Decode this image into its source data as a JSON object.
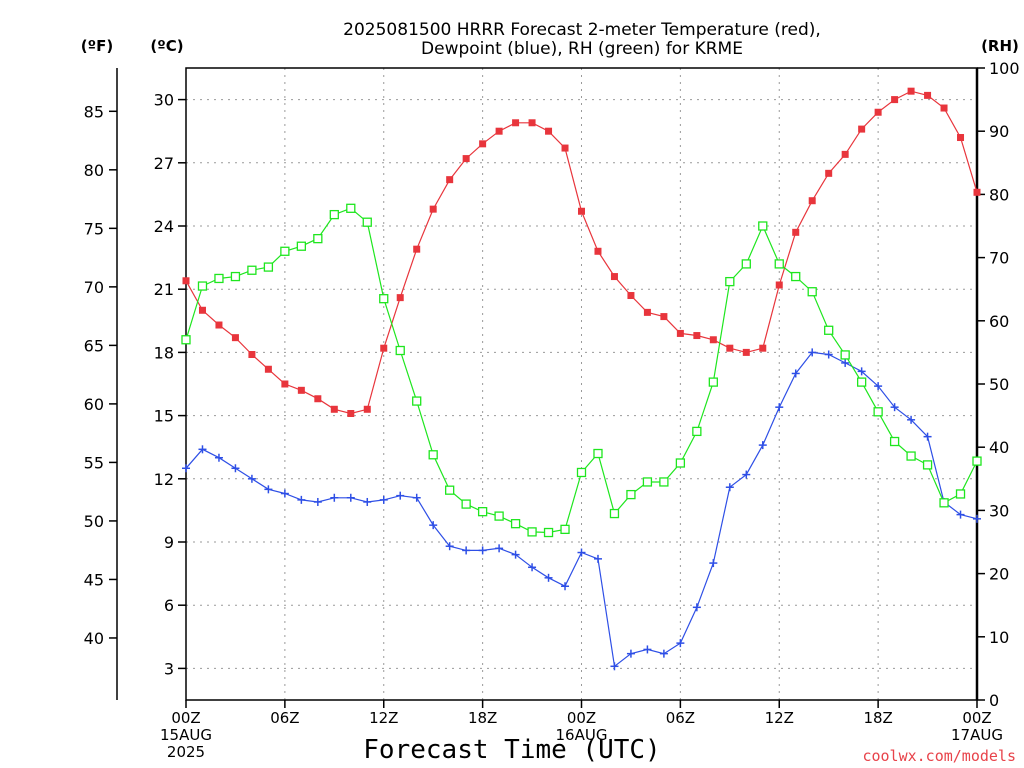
{
  "chart_data": {
    "type": "line",
    "title_line1": "2025081500 HRRR Forecast 2-meter Temperature (red),",
    "title_line2": "Dewpoint (blue), RH (green) for KRME",
    "xlabel": "Forecast Time (UTC)",
    "credit": "coolwx.com/models",
    "unit_f": "(ºF)",
    "unit_c": "(ºC)",
    "unit_rh": "(RH)",
    "celsius_axis": {
      "ylim": [
        1.5,
        31.5
      ],
      "ticks": [
        3,
        6,
        9,
        12,
        15,
        18,
        21,
        24,
        27,
        30
      ]
    },
    "fahrenheit_ticks": [
      40,
      45,
      50,
      55,
      60,
      65,
      70,
      75,
      80,
      85
    ],
    "rh_axis": {
      "ylim": [
        0,
        100
      ],
      "ticks": [
        0,
        10,
        20,
        30,
        40,
        50,
        60,
        70,
        80,
        90,
        100
      ]
    },
    "x_range_hours": [
      0,
      48
    ],
    "x_ticks": [
      {
        "hour": 0,
        "lines": [
          "00Z",
          "15AUG",
          "2025"
        ]
      },
      {
        "hour": 6,
        "lines": [
          "06Z"
        ]
      },
      {
        "hour": 12,
        "lines": [
          "12Z"
        ]
      },
      {
        "hour": 18,
        "lines": [
          "18Z"
        ]
      },
      {
        "hour": 24,
        "lines": [
          "00Z",
          "16AUG"
        ]
      },
      {
        "hour": 30,
        "lines": [
          "06Z"
        ]
      },
      {
        "hour": 36,
        "lines": [
          "12Z"
        ]
      },
      {
        "hour": 42,
        "lines": [
          "18Z"
        ]
      },
      {
        "hour": 48,
        "lines": [
          "00Z",
          "17AUG"
        ]
      }
    ],
    "series": [
      {
        "name": "Temperature",
        "axis": "celsius",
        "color": "#e8353c",
        "marker": "filled-square",
        "values": [
          21.4,
          20.0,
          19.3,
          18.7,
          17.9,
          17.2,
          16.5,
          16.2,
          15.8,
          15.3,
          15.1,
          15.3,
          18.2,
          20.6,
          22.9,
          24.8,
          26.2,
          27.2,
          27.9,
          28.5,
          28.9,
          28.9,
          28.5,
          27.7,
          24.7,
          22.8,
          21.6,
          20.7,
          19.9,
          19.7,
          18.9,
          18.8,
          18.6,
          18.2,
          18.0,
          18.2,
          21.2,
          23.7,
          25.2,
          26.5,
          27.4,
          28.6,
          29.4,
          30.0,
          30.4,
          30.2,
          29.6,
          28.2,
          25.6
        ]
      },
      {
        "name": "Dewpoint",
        "axis": "celsius",
        "color": "#2e4fe6",
        "marker": "plus",
        "values": [
          12.5,
          13.4,
          13.0,
          12.5,
          12.0,
          11.5,
          11.3,
          11.0,
          10.9,
          11.1,
          11.1,
          10.9,
          11.0,
          11.2,
          11.1,
          9.8,
          8.8,
          8.6,
          8.6,
          8.7,
          8.4,
          7.8,
          7.3,
          6.9,
          8.5,
          8.2,
          3.1,
          3.7,
          3.9,
          3.7,
          4.2,
          5.9,
          8.0,
          11.6,
          12.2,
          13.6,
          15.4,
          17.0,
          18.0,
          17.9,
          17.5,
          17.1,
          16.4,
          15.4,
          14.8,
          14.0,
          10.9,
          10.3,
          10.1
        ]
      },
      {
        "name": "RH",
        "axis": "rh",
        "color": "#1ee61e",
        "marker": "open-square",
        "values": [
          57,
          65.5,
          66.7,
          67,
          68,
          68.5,
          71,
          71.8,
          73,
          76.8,
          77.8,
          75.6,
          63.5,
          55.3,
          47.3,
          38.8,
          33.2,
          31,
          29.8,
          29.1,
          27.9,
          26.6,
          26.5,
          27,
          36,
          39,
          29.5,
          32.5,
          34.5,
          34.5,
          37.5,
          42.5,
          50.3,
          66.2,
          69,
          75,
          69,
          67,
          64.6,
          58.5,
          54.6,
          50.3,
          45.6,
          40.9,
          38.6,
          37.2,
          31.2,
          32.6,
          37.8
        ]
      }
    ]
  }
}
